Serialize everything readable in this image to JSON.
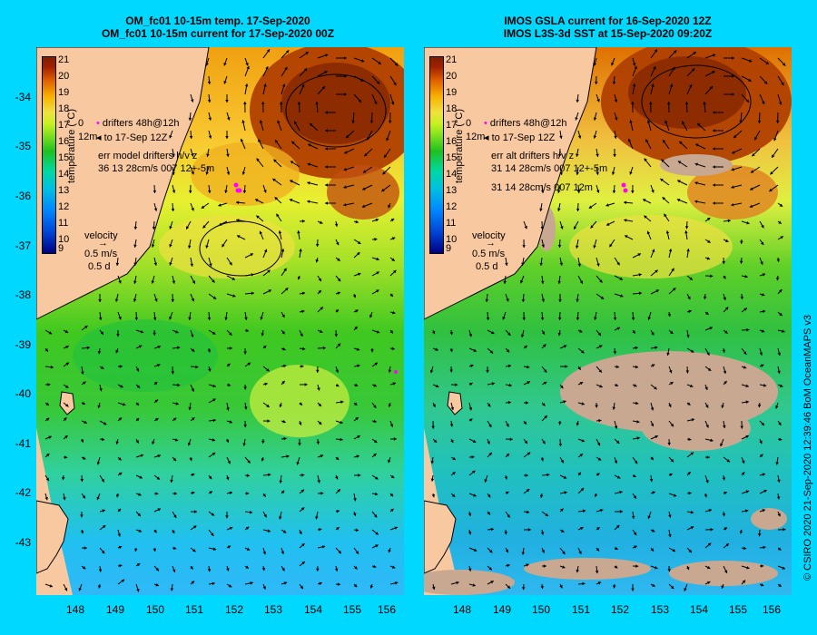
{
  "left": {
    "title1": "OM_fc01 10-15m temp. 17-Sep-2020",
    "title2": "OM_fc01 10-15m current for 17-Sep-2020 00Z",
    "legend": {
      "drifters": "drifters 48h@12h",
      "drifters_to": "to 17-Sep 12Z",
      "marker_a": "0",
      "marker_b": "12m",
      "err_label": "err model drifters h/v z",
      "err_row1": "36 13 28cm/s 007 12+-5m",
      "err_row2": ""
    },
    "velocity": {
      "label": "velocity",
      "speed": "0.5 m/s",
      "time": "0.5 d"
    },
    "colorbar_title": "temperature (°C)"
  },
  "right": {
    "title1": "IMOS GSLA current for 16-Sep-2020 12Z",
    "title2": "IMOS L3S-3d SST at 15-Sep-2020 09:20Z",
    "legend": {
      "drifters": "drifters 48h@12h",
      "drifters_to": "to 17-Sep 12Z",
      "marker_a": "0",
      "marker_b": "12m",
      "err_label": "err alt drifters h/v z",
      "err_row1": "31 14 28cm/s 007 12+-5m",
      "err_row2": "31 14 28cm/s 007 12m"
    },
    "velocity": {
      "label": "velocity",
      "speed": "0.5 m/s",
      "time": "0.5 d"
    },
    "colorbar_title": "temperature (°C)"
  },
  "colorbar_ticks": [
    "21",
    "20",
    "19",
    "18",
    "17",
    "16",
    "15",
    "14",
    "13",
    "12",
    "11",
    "10",
    "9"
  ],
  "y_ticks": [
    "-34",
    "-35",
    "-36",
    "-37",
    "-38",
    "-39",
    "-40",
    "-41",
    "-42",
    "-43"
  ],
  "x_ticks": [
    "148",
    "149",
    "150",
    "151",
    "152",
    "153",
    "154",
    "155",
    "156"
  ],
  "credit": "© CSIRO 2020   21-Sep-2020 12:39:46 BoM OceanMAPS v3",
  "colors": {
    "background": "#00d8ff",
    "land": "#f8c8a0",
    "no_data": "#c8a890",
    "drifter": "#ff00ff"
  }
}
